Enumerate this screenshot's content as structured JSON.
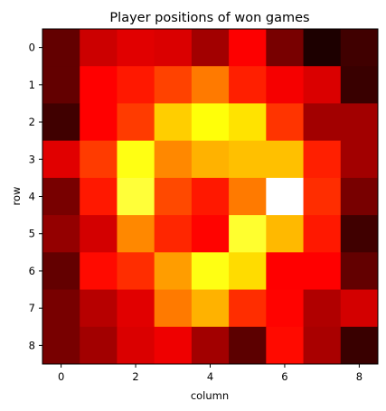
{
  "chart_data": {
    "type": "heatmap",
    "title": "Player positions of won games",
    "xlabel": "column",
    "ylabel": "row",
    "x_ticks": [
      "0",
      "2",
      "4",
      "6",
      "8"
    ],
    "y_ticks": [
      "0",
      "1",
      "2",
      "3",
      "4",
      "5",
      "6",
      "7",
      "8"
    ],
    "colormap": "hot",
    "grid": false,
    "values": [
      [
        0.1,
        0.25,
        0.28,
        0.27,
        0.19,
        0.32,
        0.13,
        0.0,
        0.05
      ],
      [
        0.1,
        0.34,
        0.4,
        0.46,
        0.54,
        0.41,
        0.31,
        0.27,
        0.04
      ],
      [
        0.05,
        0.33,
        0.45,
        0.66,
        0.74,
        0.69,
        0.44,
        0.19,
        0.19
      ],
      [
        0.28,
        0.45,
        0.75,
        0.56,
        0.62,
        0.64,
        0.64,
        0.41,
        0.19
      ],
      [
        0.13,
        0.4,
        0.79,
        0.47,
        0.4,
        0.54,
        1.0,
        0.43,
        0.13
      ],
      [
        0.17,
        0.26,
        0.56,
        0.42,
        0.37,
        0.78,
        0.63,
        0.4,
        0.05
      ],
      [
        0.1,
        0.38,
        0.43,
        0.59,
        0.75,
        0.68,
        0.36,
        0.35,
        0.1
      ],
      [
        0.13,
        0.22,
        0.28,
        0.54,
        0.62,
        0.43,
        0.37,
        0.21,
        0.26
      ],
      [
        0.13,
        0.19,
        0.27,
        0.3,
        0.19,
        0.09,
        0.38,
        0.2,
        0.04
      ]
    ]
  }
}
